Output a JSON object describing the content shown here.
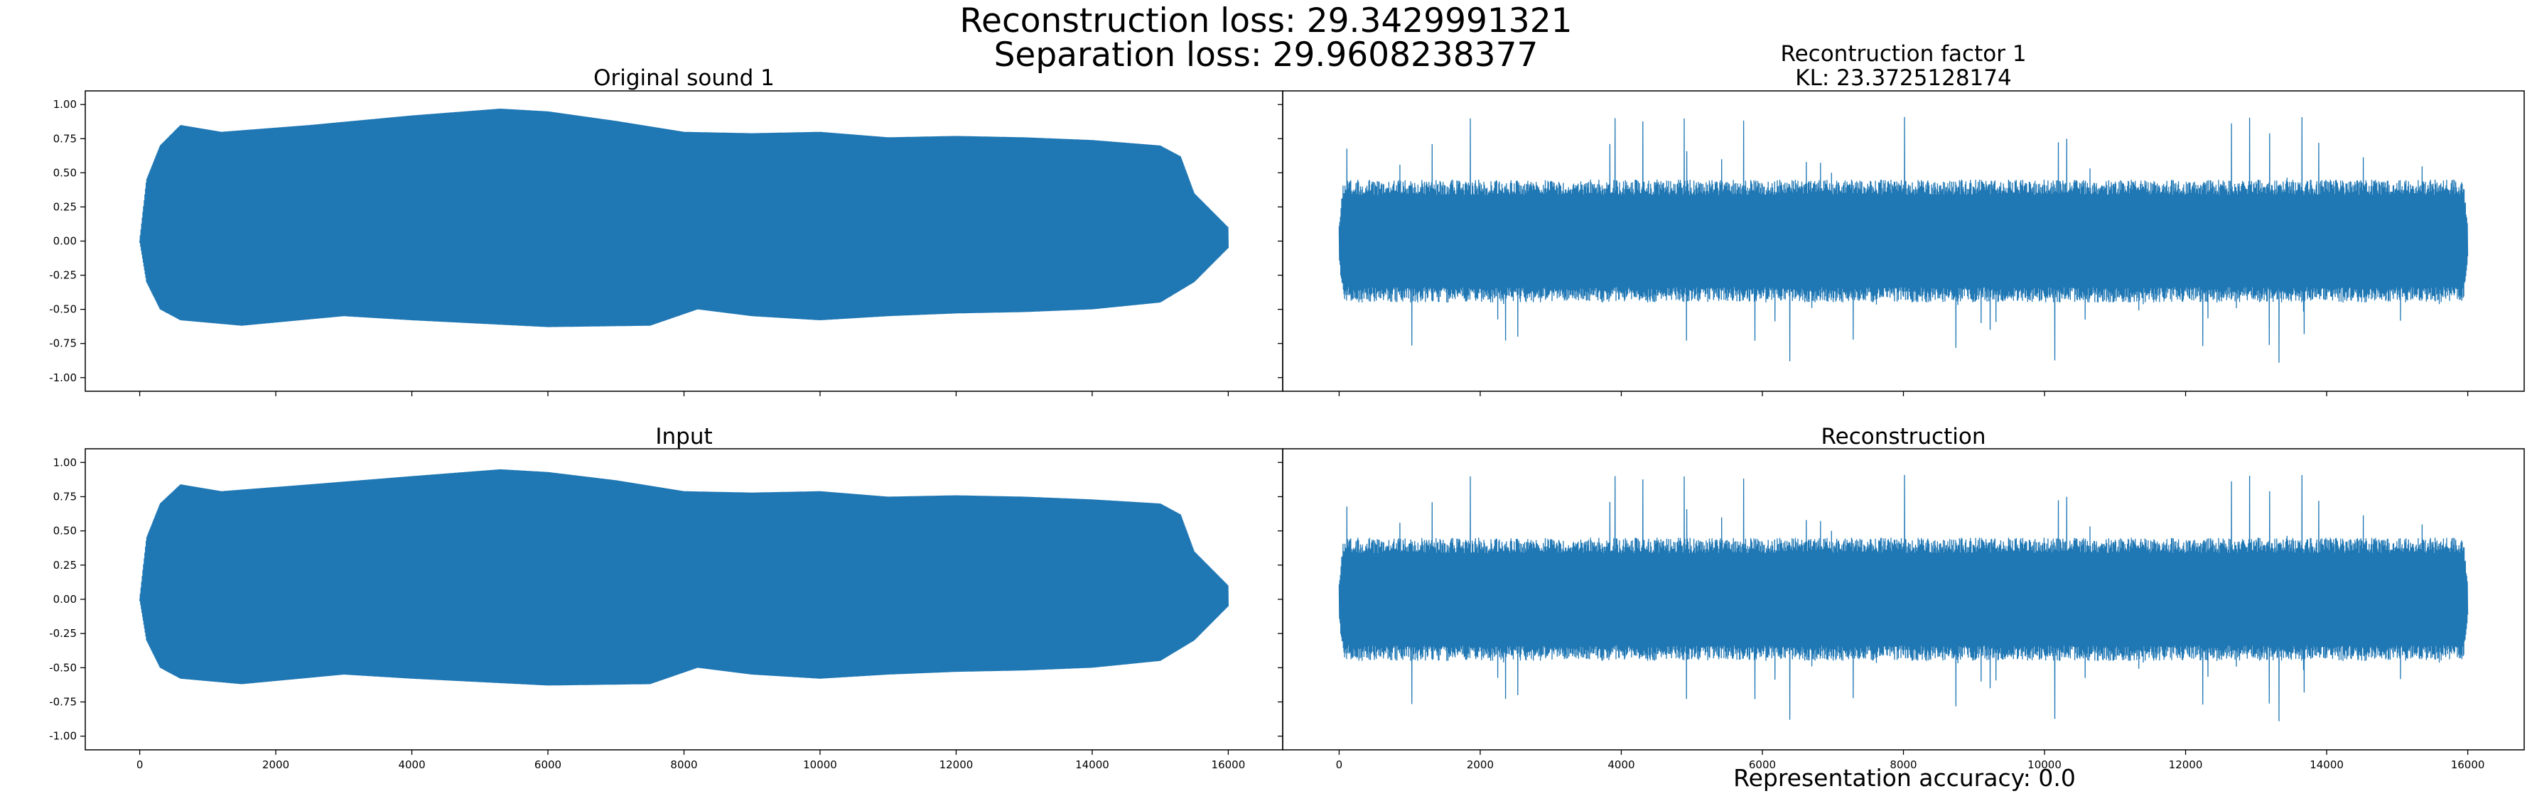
{
  "figure": {
    "suptitle_line1": "Reconstruction loss: 29.3429991321",
    "suptitle_line2": "Separation loss: 29.9608238377",
    "footer": "Representation accuracy: 0.0"
  },
  "colors": {
    "signal": "#1f77b4",
    "axes": "#000000",
    "background": "#ffffff"
  },
  "chart_data": [
    {
      "type": "line",
      "title": "Original sound 1",
      "xlabel": "",
      "ylabel": "",
      "xlim": [
        -800,
        16800
      ],
      "ylim": [
        -1.1,
        1.1
      ],
      "xticks": [
        0,
        2000,
        4000,
        6000,
        8000,
        10000,
        12000,
        14000,
        16000
      ],
      "yticks": [
        -1.0,
        -0.75,
        -0.5,
        -0.25,
        0.0,
        0.25,
        0.5,
        0.75,
        1.0
      ],
      "show_xtick_labels": false,
      "show_ytick_labels": true,
      "series": [
        {
          "n_samples": 16000,
          "signal": "tonal",
          "upper_envelope": [
            [
              0,
              0.0
            ],
            [
              100,
              0.45
            ],
            [
              300,
              0.7
            ],
            [
              600,
              0.85
            ],
            [
              1200,
              0.8
            ],
            [
              2500,
              0.85
            ],
            [
              4000,
              0.92
            ],
            [
              5300,
              0.97
            ],
            [
              6000,
              0.95
            ],
            [
              7000,
              0.88
            ],
            [
              8000,
              0.8
            ],
            [
              9000,
              0.79
            ],
            [
              10000,
              0.8
            ],
            [
              11000,
              0.76
            ],
            [
              12000,
              0.77
            ],
            [
              13000,
              0.76
            ],
            [
              14000,
              0.74
            ],
            [
              15000,
              0.7
            ],
            [
              15300,
              0.62
            ],
            [
              15500,
              0.35
            ],
            [
              16000,
              0.1
            ]
          ],
          "lower_envelope": [
            [
              0,
              0.0
            ],
            [
              100,
              -0.3
            ],
            [
              300,
              -0.5
            ],
            [
              600,
              -0.58
            ],
            [
              1500,
              -0.62
            ],
            [
              3000,
              -0.55
            ],
            [
              4000,
              -0.58
            ],
            [
              6000,
              -0.63
            ],
            [
              7500,
              -0.62
            ],
            [
              8200,
              -0.5
            ],
            [
              9000,
              -0.55
            ],
            [
              10000,
              -0.58
            ],
            [
              11000,
              -0.55
            ],
            [
              12000,
              -0.53
            ],
            [
              13000,
              -0.52
            ],
            [
              14000,
              -0.5
            ],
            [
              15000,
              -0.45
            ],
            [
              15500,
              -0.3
            ],
            [
              16000,
              -0.05
            ]
          ]
        }
      ]
    },
    {
      "type": "line",
      "title": "Recontruction factor 1\nKL: 23.3725128174",
      "xlabel": "",
      "ylabel": "",
      "xlim": [
        -800,
        16800
      ],
      "ylim": [
        -1.1,
        1.1
      ],
      "xticks": [
        0,
        2000,
        4000,
        6000,
        8000,
        10000,
        12000,
        14000,
        16000
      ],
      "yticks": [
        -1.0,
        -0.75,
        -0.5,
        -0.25,
        0.0,
        0.25,
        0.5,
        0.75,
        1.0
      ],
      "show_xtick_labels": false,
      "show_ytick_labels": false,
      "series": [
        {
          "n_samples": 16000,
          "signal": "noisy",
          "core_amplitude": 0.45,
          "spike_max": 0.92,
          "spike_min": -0.9,
          "seed": 7
        }
      ]
    },
    {
      "type": "line",
      "title": "Input",
      "xlabel": "",
      "ylabel": "",
      "xlim": [
        -800,
        16800
      ],
      "ylim": [
        -1.1,
        1.1
      ],
      "xticks": [
        0,
        2000,
        4000,
        6000,
        8000,
        10000,
        12000,
        14000,
        16000
      ],
      "yticks": [
        -1.0,
        -0.75,
        -0.5,
        -0.25,
        0.0,
        0.25,
        0.5,
        0.75,
        1.0
      ],
      "show_xtick_labels": true,
      "show_ytick_labels": true,
      "series": [
        {
          "n_samples": 16000,
          "signal": "tonal",
          "upper_envelope": [
            [
              0,
              0.0
            ],
            [
              100,
              0.45
            ],
            [
              300,
              0.7
            ],
            [
              600,
              0.84
            ],
            [
              1200,
              0.79
            ],
            [
              2500,
              0.84
            ],
            [
              4000,
              0.9
            ],
            [
              5300,
              0.95
            ],
            [
              6000,
              0.93
            ],
            [
              7000,
              0.87
            ],
            [
              8000,
              0.79
            ],
            [
              9000,
              0.78
            ],
            [
              10000,
              0.79
            ],
            [
              11000,
              0.75
            ],
            [
              12000,
              0.76
            ],
            [
              13000,
              0.75
            ],
            [
              14000,
              0.73
            ],
            [
              15000,
              0.7
            ],
            [
              15300,
              0.62
            ],
            [
              15500,
              0.35
            ],
            [
              16000,
              0.1
            ]
          ],
          "lower_envelope": [
            [
              0,
              0.0
            ],
            [
              100,
              -0.3
            ],
            [
              300,
              -0.5
            ],
            [
              600,
              -0.58
            ],
            [
              1500,
              -0.62
            ],
            [
              3000,
              -0.55
            ],
            [
              4000,
              -0.58
            ],
            [
              6000,
              -0.63
            ],
            [
              7500,
              -0.62
            ],
            [
              8200,
              -0.5
            ],
            [
              9000,
              -0.55
            ],
            [
              10000,
              -0.58
            ],
            [
              11000,
              -0.55
            ],
            [
              12000,
              -0.53
            ],
            [
              13000,
              -0.52
            ],
            [
              14000,
              -0.5
            ],
            [
              15000,
              -0.45
            ],
            [
              15500,
              -0.3
            ],
            [
              16000,
              -0.05
            ]
          ]
        }
      ]
    },
    {
      "type": "line",
      "title": "Reconstruction",
      "xlabel": "",
      "ylabel": "",
      "xlim": [
        -800,
        16800
      ],
      "ylim": [
        -1.1,
        1.1
      ],
      "xticks": [
        0,
        2000,
        4000,
        6000,
        8000,
        10000,
        12000,
        14000,
        16000
      ],
      "yticks": [
        -1.0,
        -0.75,
        -0.5,
        -0.25,
        0.0,
        0.25,
        0.5,
        0.75,
        1.0
      ],
      "show_xtick_labels": true,
      "show_ytick_labels": false,
      "series": [
        {
          "n_samples": 16000,
          "signal": "noisy",
          "core_amplitude": 0.45,
          "spike_max": 0.92,
          "spike_min": -0.9,
          "seed": 7
        }
      ]
    }
  ]
}
